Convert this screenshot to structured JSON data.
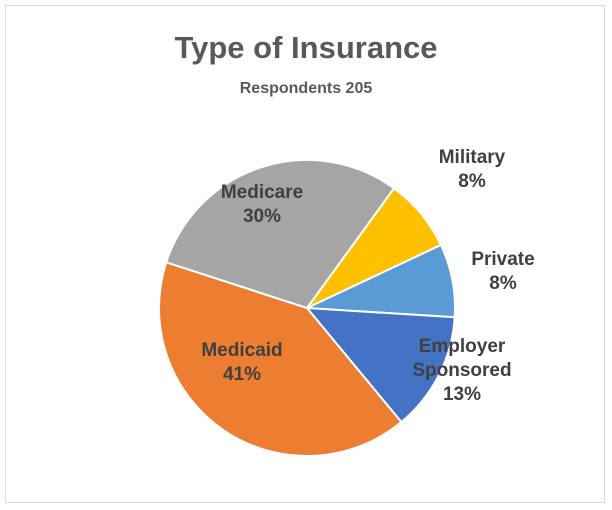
{
  "chart_data": {
    "type": "pie",
    "title": "Type of Insurance",
    "subtitle": "Respondents 205",
    "slices": [
      {
        "label": "Military",
        "value": 8,
        "value_label": "8%",
        "color": "#ffc000"
      },
      {
        "label": "Private",
        "value": 8,
        "value_label": "8%",
        "color": "#5b9bd5"
      },
      {
        "label": "Employer Sponsored",
        "value": 13,
        "value_label": "13%",
        "color": "#4472c4"
      },
      {
        "label": "Medicaid",
        "value": 41,
        "value_label": "41%",
        "color": "#ed7d31"
      },
      {
        "label": "Medicare",
        "value": 30,
        "value_label": "30%",
        "color": "#a5a5a5"
      }
    ]
  }
}
